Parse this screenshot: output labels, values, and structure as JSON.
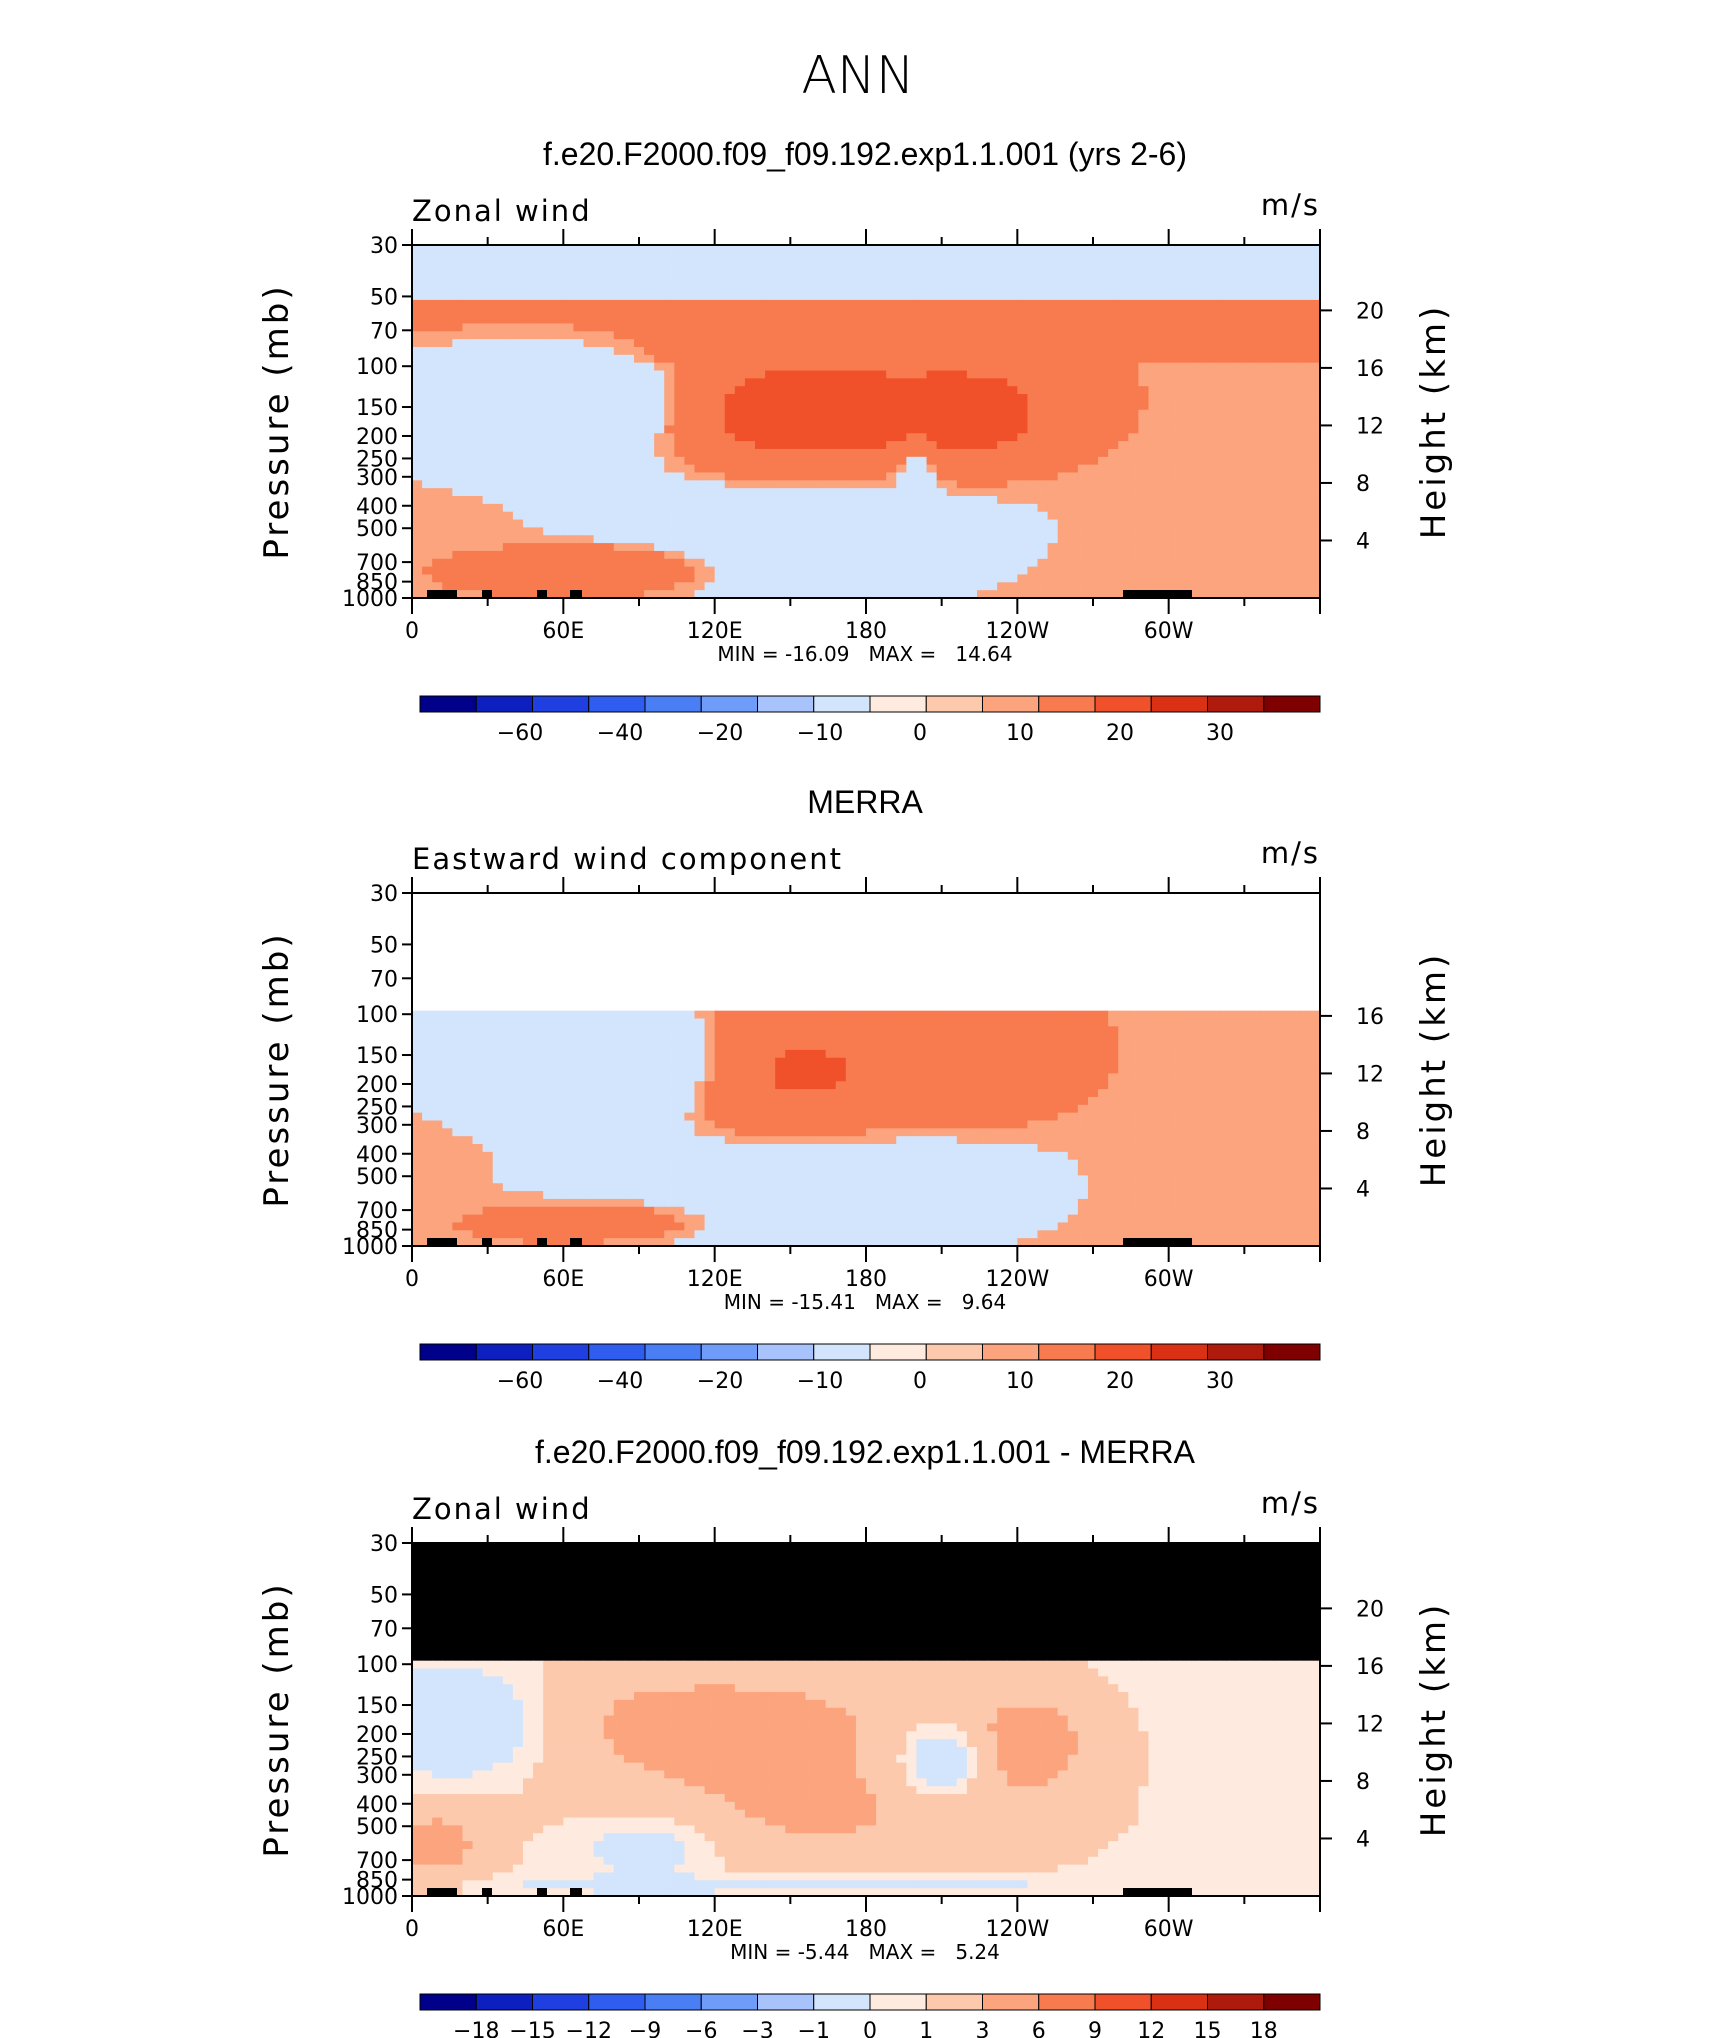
{
  "title": "ANN",
  "colors": {
    "scale": [
      "#00008b",
      "#0d1fbf",
      "#1f3fe0",
      "#2f5df0",
      "#4a7ef5",
      "#6f9cf8",
      "#a8c2fb",
      "#d3e5fc",
      "#feeade",
      "#fdc9ad",
      "#fba47d",
      "#f87b4f",
      "#f0502a",
      "#da3114",
      "#ae1a0b",
      "#7f0000"
    ],
    "mask": "#000000"
  },
  "chart_data": [
    {
      "type": "heatmap",
      "panel_title": "f.e20.F2000.f09_f09.192.exp1.1.001 (yrs 2-6)",
      "left_label": "Zonal wind",
      "right_label": "m/s",
      "ylabel": "Pressure (mb)",
      "y2label": "Height (km)",
      "x_ticks": [
        "0",
        "60E",
        "120E",
        "180",
        "120W",
        "60W"
      ],
      "y_ticks": [
        "30",
        "50",
        "70",
        "100",
        "150",
        "200",
        "250",
        "300",
        "400",
        "500",
        "700",
        "850",
        "1000"
      ],
      "y2_ticks": [
        "20",
        "16",
        "12",
        "8",
        "4"
      ],
      "colorbar_labels": [
        "-60",
        "-40",
        "-20",
        "-10",
        "0",
        "10",
        "20",
        "30"
      ],
      "min_label": "MIN =",
      "min": "-16.09",
      "max_label": "MAX =",
      "max": "14.64",
      "field": {
        "bands": [
          {
            "p": 30,
            "value": -5
          },
          {
            "p": 50,
            "value": 2
          },
          {
            "p": 100,
            "value": 1
          }
        ],
        "features": [
          {
            "lon": 45,
            "p": 150,
            "value": -12,
            "lon_span": 60,
            "p_span": 100
          },
          {
            "lon": 155,
            "p": 160,
            "value": 13,
            "lon_span": 55,
            "p_span": 120
          },
          {
            "lon": 225,
            "p": 160,
            "value": 9,
            "lon_span": 30,
            "p_span": 100
          },
          {
            "lon": 200,
            "p": 260,
            "value": -5,
            "lon_span": 8,
            "p_span": 80
          },
          {
            "lon": 75,
            "p": 750,
            "value": 6,
            "lon_span": 40,
            "p_span": 180
          },
          {
            "lon": 150,
            "p": 500,
            "value": -4,
            "lon_span": 90,
            "p_span": 600
          }
        ],
        "background": 1
      }
    },
    {
      "type": "heatmap",
      "panel_title": "MERRA",
      "left_label": "Eastward wind component",
      "right_label": "m/s",
      "ylabel": "Pressure (mb)",
      "y2label": "Height (km)",
      "x_ticks": [
        "0",
        "60E",
        "120E",
        "180",
        "120W",
        "60W"
      ],
      "y_ticks": [
        "30",
        "50",
        "70",
        "100",
        "150",
        "200",
        "250",
        "300",
        "400",
        "500",
        "700",
        "850",
        "1000"
      ],
      "y2_ticks": [
        "16",
        "12",
        "8",
        "4"
      ],
      "colorbar_labels": [
        "-60",
        "-40",
        "-20",
        "-10",
        "0",
        "10",
        "20",
        "30"
      ],
      "min_label": "MIN =",
      "min": "-15.41",
      "max_label": "MAX =",
      "max": "9.64",
      "field": {
        "no_data_above_p": 100,
        "features": [
          {
            "lon": 70,
            "p": 160,
            "value": -12,
            "lon_span": 55,
            "p_span": 100
          },
          {
            "lon": 150,
            "p": 180,
            "value": 9,
            "lon_span": 45,
            "p_span": 150
          },
          {
            "lon": 225,
            "p": 170,
            "value": 6,
            "lon_span": 28,
            "p_span": 100
          },
          {
            "lon": 75,
            "p": 780,
            "value": 5,
            "lon_span": 40,
            "p_span": 160
          },
          {
            "lon": 150,
            "p": 550,
            "value": -4,
            "lon_span": 100,
            "p_span": 600
          }
        ],
        "background": 1
      }
    },
    {
      "type": "heatmap",
      "panel_title": "f.e20.F2000.f09_f09.192.exp1.1.001 - MERRA",
      "left_label": "Zonal wind",
      "right_label": "m/s",
      "ylabel": "Pressure (mb)",
      "y2label": "Height (km)",
      "x_ticks": [
        "0",
        "60E",
        "120E",
        "180",
        "120W",
        "60W"
      ],
      "y_ticks": [
        "30",
        "50",
        "70",
        "100",
        "150",
        "200",
        "250",
        "300",
        "400",
        "500",
        "700",
        "850",
        "1000"
      ],
      "y2_ticks": [
        "20",
        "16",
        "12",
        "8",
        "4"
      ],
      "colorbar_labels": [
        "-18",
        "-15",
        "-12",
        "-9",
        "-6",
        "-3",
        "-1",
        "0",
        "1",
        "3",
        "6",
        "9",
        "12",
        "15",
        "18"
      ],
      "min_label": "MIN =",
      "min": "-5.44",
      "max_label": "MAX =",
      "max": "5.24",
      "field": {
        "masked_above_p": 100,
        "features": [
          {
            "lon": 20,
            "p": 180,
            "value": -5,
            "lon_span": 35,
            "p_span": 120
          },
          {
            "lon": 120,
            "p": 180,
            "value": 4,
            "lon_span": 90,
            "p_span": 150
          },
          {
            "lon": 210,
            "p": 260,
            "value": -5,
            "lon_span": 18,
            "p_span": 120
          },
          {
            "lon": 245,
            "p": 220,
            "value": 4,
            "lon_span": 25,
            "p_span": 150
          },
          {
            "lon": 10,
            "p": 600,
            "value": 4,
            "lon_span": 20,
            "p_span": 300
          },
          {
            "lon": 95,
            "p": 600,
            "value": -3,
            "lon_span": 30,
            "p_span": 250
          },
          {
            "lon": 160,
            "p": 450,
            "value": 3,
            "lon_span": 80,
            "p_span": 350
          },
          {
            "lon": 150,
            "p": 900,
            "value": -2,
            "lon_span": 140,
            "p_span": 90
          }
        ],
        "background": 1
      }
    }
  ]
}
